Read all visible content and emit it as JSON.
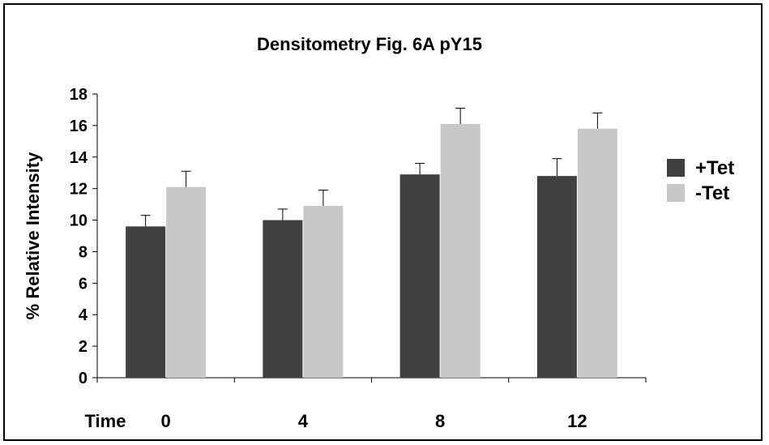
{
  "chart_data": {
    "type": "bar",
    "title": "Densitometry Fig. 6A pY15",
    "xlabel": "Time",
    "ylabel": "% Relative Intensity",
    "categories": [
      "0",
      "4",
      "8",
      "12"
    ],
    "ylim": [
      0,
      18
    ],
    "yticks": [
      "0",
      "2",
      "4",
      "6",
      "8",
      "10",
      "12",
      "14",
      "16",
      "18"
    ],
    "grid": false,
    "legend_position": "right",
    "series": [
      {
        "name": "+Tet",
        "color": "#404040",
        "values": [
          9.6,
          10.0,
          12.9,
          12.8
        ],
        "errors": [
          0.7,
          0.7,
          0.7,
          1.1
        ]
      },
      {
        "name": "-Tet",
        "color": "#c8c8c8",
        "values": [
          12.1,
          10.9,
          16.1,
          15.8
        ],
        "errors": [
          1.0,
          1.0,
          1.0,
          1.0
        ]
      }
    ]
  }
}
